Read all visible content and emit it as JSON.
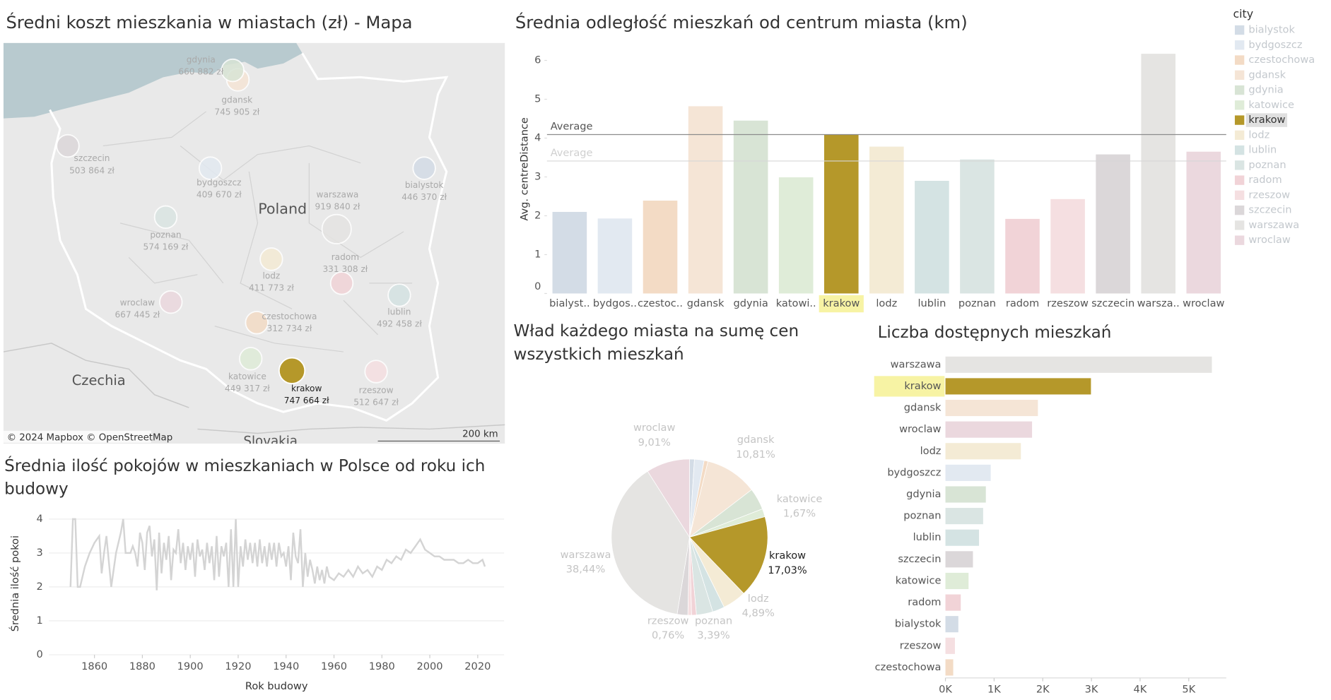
{
  "selected": "krakow",
  "legend": {
    "title": "city",
    "items": [
      {
        "name": "bialystok",
        "color": "#d3dce6"
      },
      {
        "name": "bydgoszcz",
        "color": "#e2e9f1"
      },
      {
        "name": "czestochowa",
        "color": "#f3dbc5"
      },
      {
        "name": "gdansk",
        "color": "#f5e5d6"
      },
      {
        "name": "gdynia",
        "color": "#d8e4d5"
      },
      {
        "name": "katowice",
        "color": "#dfecd8"
      },
      {
        "name": "krakow",
        "color": "#b5982a"
      },
      {
        "name": "lodz",
        "color": "#f4ebd5"
      },
      {
        "name": "lublin",
        "color": "#d4e3e3"
      },
      {
        "name": "poznan",
        "color": "#dae5e3"
      },
      {
        "name": "radom",
        "color": "#f1d3d7"
      },
      {
        "name": "rzeszow",
        "color": "#f5dfe1"
      },
      {
        "name": "szczecin",
        "color": "#dbd7d9"
      },
      {
        "name": "warszawa",
        "color": "#e5e4e2"
      },
      {
        "name": "wroclaw",
        "color": "#ebd8de"
      }
    ]
  },
  "chart_data": [
    {
      "type": "map",
      "title": "Średni koszt mieszkania w miastach (zł) - Mapa",
      "categories": [
        "bialystok",
        "bydgoszcz",
        "czestochowa",
        "gdansk",
        "gdynia",
        "katowice",
        "krakow",
        "lodz",
        "lublin",
        "poznan",
        "radom",
        "rzeszow",
        "szczecin",
        "warszawa",
        "wroclaw"
      ],
      "values": [
        446370,
        409670,
        312734,
        745905,
        660882,
        449317,
        747664,
        411773,
        492458,
        574169,
        331308,
        512647,
        503864,
        919840,
        667445
      ],
      "value_labels": [
        "446 370 zł",
        "409 670 zł",
        "312 734 zł",
        "745 905 zł",
        "660 882 zł",
        "449 317 zł",
        "747 664 zł",
        "411 773 zł",
        "492 458 zł",
        "574 169 zł",
        "331 308 zł",
        "512 647 zł",
        "503 864 zł",
        "919 840 zł",
        "667 445 zł"
      ],
      "place_labels": [
        "Poland",
        "Czechia",
        "Slovakia"
      ],
      "attribution": "© 2024 Mapbox © OpenStreetMap",
      "scale_label": "200 km"
    },
    {
      "type": "bar",
      "title": "Średnia odległość mieszkań od centrum miasta (km)",
      "y_label": "Avg. centreDistance",
      "categories": [
        "bialyst..",
        "bydgos..",
        "czestoc..",
        "gdansk",
        "gdynia",
        "katowi..",
        "krakow",
        "lodz",
        "lublin",
        "poznan",
        "radom",
        "rzeszow",
        "szczecin",
        "warsza..",
        "wroclaw"
      ],
      "values": [
        2.1,
        1.93,
        2.39,
        4.82,
        4.45,
        2.99,
        4.09,
        3.78,
        2.9,
        3.45,
        1.92,
        2.43,
        3.58,
        6.17,
        3.65
      ],
      "ylim": [
        0,
        6.45
      ],
      "yticks": [
        0,
        1,
        2,
        3,
        4,
        5,
        6
      ],
      "reference_lines": [
        {
          "label": "Average",
          "value": 4.09
        },
        {
          "label": "Average",
          "value": 3.41
        }
      ]
    },
    {
      "type": "pie",
      "title": "Wład każdego miasta na sumę cen wszystkich mieszkań",
      "categories": [
        null,
        null,
        null,
        "gdansk",
        null,
        "katowice",
        "krakow",
        "lodz",
        null,
        "poznan",
        null,
        "rzeszow",
        null,
        "warszawa",
        "wroclaw"
      ],
      "values": [
        1.0,
        2.0,
        0.8,
        10.81,
        4.5,
        1.67,
        17.03,
        4.89,
        2.5,
        3.39,
        1.0,
        0.76,
        2.2,
        38.44,
        9.01
      ],
      "value_labels": [
        null,
        null,
        null,
        "10,81%",
        null,
        "1,67%",
        "17,03%",
        "4,89%",
        null,
        "3,39%",
        null,
        "0,76%",
        null,
        "38,44%",
        "9,01%"
      ]
    },
    {
      "type": "bar",
      "orientation": "horizontal",
      "title": "Liczba dostępnych mieszkań",
      "categories": [
        "warszawa",
        "krakow",
        "gdansk",
        "wroclaw",
        "lodz",
        "bydgoszcz",
        "gdynia",
        "poznan",
        "lublin",
        "szczecin",
        "katowice",
        "radom",
        "bialystok",
        "rzeszow",
        "czestochowa"
      ],
      "values": [
        5475,
        2990,
        1900,
        1780,
        1550,
        930,
        830,
        775,
        690,
        565,
        475,
        315,
        265,
        195,
        160
      ],
      "xlim": [
        0,
        5770
      ],
      "xticks": [
        {
          "value": 0,
          "label": "0K"
        },
        {
          "value": 1000,
          "label": "1K"
        },
        {
          "value": 2000,
          "label": "2K"
        },
        {
          "value": 3000,
          "label": "3K"
        },
        {
          "value": 4000,
          "label": "4K"
        },
        {
          "value": 5000,
          "label": "5K"
        }
      ]
    },
    {
      "type": "line",
      "title": "Średnia ilość pokojów w mieszkaniach w Polsce od roku ich budowy",
      "x_label": "Rok budowy",
      "y_label": "Średnia ilość pokoi",
      "color": "#d4d4d4",
      "grid": true,
      "xlim": [
        1841,
        2031
      ],
      "xticks": [
        1860,
        1880,
        1900,
        1920,
        1940,
        1960,
        1980,
        2000,
        2020
      ],
      "ylim": [
        0,
        4.2
      ],
      "yticks": [
        0,
        1,
        2,
        3,
        4
      ],
      "x": [
        1850,
        1851,
        1852,
        1853,
        1854,
        1856,
        1858,
        1860,
        1862,
        1863,
        1864,
        1865,
        1867,
        1869,
        1871,
        1872,
        1873,
        1875,
        1876,
        1877,
        1878,
        1879,
        1880,
        1881,
        1882,
        1883,
        1884,
        1885,
        1886,
        1887,
        1888,
        1889,
        1890,
        1891,
        1892,
        1893,
        1894,
        1895,
        1896,
        1897,
        1898,
        1899,
        1900,
        1901,
        1902,
        1903,
        1904,
        1905,
        1906,
        1907,
        1908,
        1909,
        1910,
        1911,
        1912,
        1913,
        1914,
        1915,
        1916,
        1917,
        1918,
        1919,
        1920,
        1921,
        1922,
        1923,
        1924,
        1925,
        1926,
        1927,
        1928,
        1929,
        1930,
        1931,
        1932,
        1933,
        1934,
        1935,
        1936,
        1937,
        1938,
        1939,
        1940,
        1941,
        1942,
        1943,
        1944,
        1945,
        1946,
        1947,
        1948,
        1949,
        1950,
        1951,
        1952,
        1953,
        1954,
        1955,
        1956,
        1957,
        1958,
        1960,
        1962,
        1964,
        1966,
        1968,
        1970,
        1972,
        1974,
        1976,
        1978,
        1980,
        1982,
        1984,
        1986,
        1988,
        1990,
        1992,
        1994,
        1996,
        1998,
        2000,
        2002,
        2004,
        2006,
        2008,
        2010,
        2012,
        2014,
        2016,
        2018,
        2020,
        2022,
        2023
      ],
      "values": [
        2.0,
        4.0,
        4.0,
        2.0,
        2.0,
        2.6,
        3.0,
        3.3,
        3.5,
        2.4,
        3.0,
        3.5,
        2.0,
        3.0,
        3.6,
        4.0,
        3.0,
        3.0,
        3.2,
        3.0,
        2.6,
        3.6,
        3.3,
        2.5,
        3.6,
        3.8,
        2.9,
        3.4,
        1.9,
        3.6,
        2.4,
        3.3,
        2.8,
        3.5,
        2.2,
        3.1,
        3.0,
        3.7,
        2.7,
        3.3,
        2.5,
        3.2,
        2.8,
        3.3,
        2.3,
        3.4,
        2.9,
        3.1,
        2.5,
        3.3,
        2.7,
        3.2,
        2.2,
        3.5,
        2.3,
        3.2,
        2.9,
        3.3,
        2.0,
        3.7,
        2.0,
        4.0,
        2.0,
        3.2,
        2.6,
        3.4,
        2.8,
        3.3,
        2.7,
        3.3,
        2.6,
        3.4,
        2.7,
        3.2,
        2.6,
        3.3,
        2.8,
        3.3,
        2.6,
        3.3,
        2.9,
        3.0,
        2.6,
        3.2,
        2.2,
        3.6,
        2.9,
        2.7,
        3.7,
        2.0,
        3.0,
        2.3,
        2.8,
        2.5,
        2.1,
        2.6,
        2.2,
        2.5,
        2.1,
        2.6,
        2.3,
        2.2,
        2.4,
        2.3,
        2.5,
        2.3,
        2.6,
        2.4,
        2.5,
        2.3,
        2.6,
        2.5,
        2.8,
        2.7,
        2.9,
        2.8,
        3.1,
        3.0,
        3.2,
        3.4,
        3.1,
        3.0,
        2.9,
        2.9,
        2.8,
        2.8,
        2.8,
        2.7,
        2.7,
        2.8,
        2.7,
        2.7,
        2.8,
        2.6
      ]
    }
  ]
}
